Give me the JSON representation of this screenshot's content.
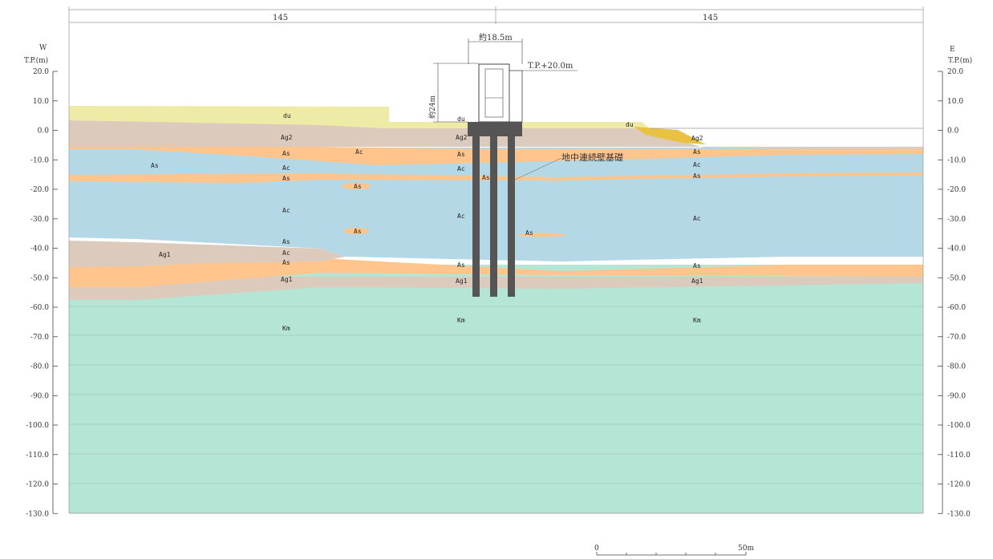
{
  "axis": {
    "west_dir": "W",
    "east_dir": "E",
    "unit_label": "T.P.(m)",
    "ticks": [
      "20.0",
      "10.0",
      "0.0",
      "-10.0",
      "-20.0",
      "-30.0",
      "-40.0",
      "-50.0",
      "-60.0",
      "-70.0",
      "-80.0",
      "-90.0",
      "-100.0",
      "-110.0",
      "-120.0",
      "-130.0"
    ]
  },
  "dimensions": {
    "left": "145",
    "right": "145",
    "width": "約18.5m",
    "height": "約24m",
    "top_level": "T.P.+20.0m"
  },
  "wall_label": "地中連続壁基礎",
  "layers": {
    "du": "du",
    "ag2": "Ag2",
    "as": "As",
    "ac": "Ac",
    "ag1": "Ag1",
    "km": "Km"
  },
  "scale": {
    "zero": "0",
    "end": "50m"
  },
  "colors": {
    "du": "#eeeba6",
    "ag": "#dccbbd",
    "as": "#ffc58d",
    "ac": "#b4d8e5",
    "km": "#b5e5d4",
    "structure": "#555555"
  }
}
